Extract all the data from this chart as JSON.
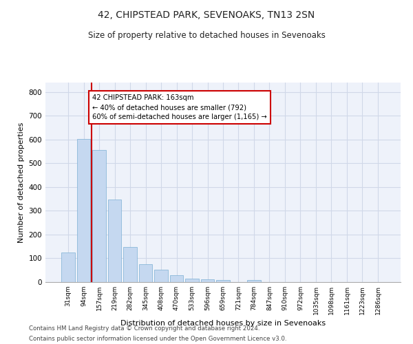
{
  "title1": "42, CHIPSTEAD PARK, SEVENOAKS, TN13 2SN",
  "title2": "Size of property relative to detached houses in Sevenoaks",
  "xlabel": "Distribution of detached houses by size in Sevenoaks",
  "ylabel": "Number of detached properties",
  "categories": [
    "31sqm",
    "94sqm",
    "157sqm",
    "219sqm",
    "282sqm",
    "345sqm",
    "408sqm",
    "470sqm",
    "533sqm",
    "596sqm",
    "659sqm",
    "721sqm",
    "784sqm",
    "847sqm",
    "910sqm",
    "972sqm",
    "1035sqm",
    "1098sqm",
    "1161sqm",
    "1223sqm",
    "1286sqm"
  ],
  "values": [
    125,
    603,
    555,
    348,
    148,
    75,
    52,
    30,
    14,
    13,
    10,
    0,
    8,
    0,
    0,
    0,
    0,
    0,
    0,
    0,
    0
  ],
  "bar_color": "#c5d8f0",
  "bar_edge_color": "#7bafd4",
  "annotation_text": "42 CHIPSTEAD PARK: 163sqm\n← 40% of detached houses are smaller (792)\n60% of semi-detached houses are larger (1,165) →",
  "annotation_box_color": "#ffffff",
  "annotation_box_edge_color": "#cc0000",
  "vline_color": "#cc0000",
  "grid_color": "#d0d8e8",
  "background_color": "#eef2fa",
  "footer1": "Contains HM Land Registry data © Crown copyright and database right 2024.",
  "footer2": "Contains public sector information licensed under the Open Government Licence v3.0.",
  "ylim": [
    0,
    840
  ],
  "yticks": [
    0,
    100,
    200,
    300,
    400,
    500,
    600,
    700,
    800
  ]
}
